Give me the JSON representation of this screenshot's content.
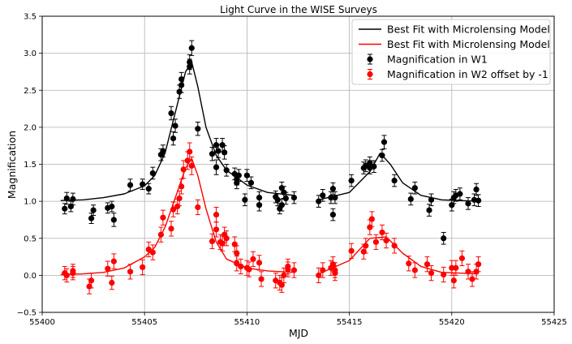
{
  "chart_data": {
    "type": "scatter",
    "title": "Light Curve in the WISE Surveys",
    "xlabel": "MJD",
    "ylabel": "Magnification",
    "xlim": [
      55400,
      55425
    ],
    "ylim": [
      -0.5,
      3.5
    ],
    "xticks": [
      55400,
      55405,
      55410,
      55415,
      55420,
      55425
    ],
    "yticks": [
      -0.5,
      0.0,
      0.5,
      1.0,
      1.5,
      2.0,
      2.5,
      3.0,
      3.5
    ],
    "xtick_labels": [
      "55400",
      "55405",
      "55410",
      "55415",
      "55420",
      "55425"
    ],
    "ytick_labels": [
      "−0.5",
      "0.0",
      "0.5",
      "1.0",
      "1.5",
      "2.0",
      "2.5",
      "3.0",
      "3.5"
    ],
    "grid": true,
    "legend_position": "top-right",
    "colors": {
      "w1": "#000000",
      "w2": "#ff0000",
      "grid": "#b0b0b0"
    },
    "legend": [
      {
        "label": "Best Fit with Microlensing Model",
        "kind": "line",
        "series": "w1_fit"
      },
      {
        "label": "Best Fit with Microlensing Model",
        "kind": "line",
        "series": "w2_fit"
      },
      {
        "label": "Magnification in W1",
        "kind": "errorbar",
        "series": "w1"
      },
      {
        "label": "Magnification in W2 offset by -1",
        "kind": "errorbar",
        "series": "w2"
      }
    ],
    "fit_lines": [
      {
        "id": "w1_fit",
        "color": "#000000",
        "segments": [
          [
            [
              55400.9,
              1.01
            ],
            [
              55402,
              1.02
            ],
            [
              55403,
              1.05
            ],
            [
              55404,
              1.1
            ],
            [
              55405,
              1.21
            ],
            [
              55405.5,
              1.35
            ],
            [
              55406,
              1.65
            ],
            [
              55406.5,
              2.2
            ],
            [
              55407,
              2.75
            ],
            [
              55407.3,
              2.88
            ],
            [
              55407.6,
              2.55
            ],
            [
              55408,
              2.0
            ],
            [
              55408.5,
              1.62
            ],
            [
              55409,
              1.42
            ],
            [
              55410,
              1.22
            ],
            [
              55411,
              1.12
            ],
            [
              55412.3,
              1.08
            ]
          ],
          [
            [
              55413.5,
              1.02
            ],
            [
              55415,
              1.12
            ],
            [
              55416,
              1.4
            ],
            [
              55416.5,
              1.65
            ],
            [
              55417,
              1.5
            ],
            [
              55417.6,
              1.25
            ],
            [
              55418.5,
              1.08
            ],
            [
              55419.5,
              1.02
            ],
            [
              55421.3,
              1.0
            ]
          ]
        ]
      },
      {
        "id": "w2_fit",
        "color": "#ff0000",
        "segments": [
          [
            [
              55400.9,
              0.01
            ],
            [
              55402,
              0.02
            ],
            [
              55403,
              0.04
            ],
            [
              55404,
              0.1
            ],
            [
              55405,
              0.25
            ],
            [
              55405.5,
              0.38
            ],
            [
              55406,
              0.65
            ],
            [
              55406.5,
              1.05
            ],
            [
              55407,
              1.45
            ],
            [
              55407.3,
              1.58
            ],
            [
              55407.6,
              1.35
            ],
            [
              55408,
              0.9
            ],
            [
              55408.5,
              0.45
            ],
            [
              55409,
              0.22
            ],
            [
              55410,
              0.1
            ],
            [
              55411,
              0.06
            ],
            [
              55412.3,
              0.04
            ]
          ],
          [
            [
              55413.5,
              0.02
            ],
            [
              55415,
              0.2
            ],
            [
              55416,
              0.5
            ],
            [
              55416.8,
              0.52
            ],
            [
              55417.6,
              0.3
            ],
            [
              55418.5,
              0.12
            ],
            [
              55419.5,
              0.04
            ],
            [
              55421.3,
              0.02
            ]
          ]
        ]
      }
    ],
    "series": [
      {
        "name": "Magnification in W1",
        "id": "w1",
        "color": "#000000",
        "points": [
          [
            55401.1,
            0.9,
            0.07
          ],
          [
            55401.2,
            1.04,
            0.08
          ],
          [
            55401.4,
            0.93,
            0.07
          ],
          [
            55401.5,
            1.03,
            0.08
          ],
          [
            55402.4,
            0.77,
            0.07
          ],
          [
            55402.5,
            0.88,
            0.07
          ],
          [
            55403.2,
            0.91,
            0.07
          ],
          [
            55403.4,
            0.93,
            0.07
          ],
          [
            55403.5,
            0.75,
            0.09
          ],
          [
            55404.3,
            1.22,
            0.08
          ],
          [
            55404.9,
            1.23,
            0.07
          ],
          [
            55405.2,
            1.17,
            0.07
          ],
          [
            55405.4,
            1.38,
            0.08
          ],
          [
            55405.8,
            1.63,
            0.08
          ],
          [
            55405.9,
            1.68,
            0.08
          ],
          [
            55406.3,
            2.19,
            0.09
          ],
          [
            55406.4,
            1.85,
            0.09
          ],
          [
            55406.5,
            2.02,
            0.09
          ],
          [
            55406.7,
            2.48,
            0.09
          ],
          [
            55406.8,
            2.57,
            0.1
          ],
          [
            55406.8,
            2.65,
            0.09
          ],
          [
            55407.2,
            2.82,
            0.1
          ],
          [
            55407.2,
            2.88,
            0.1
          ],
          [
            55407.3,
            3.07,
            0.1
          ],
          [
            55407.6,
            1.98,
            0.09
          ],
          [
            55408.3,
            1.64,
            0.09
          ],
          [
            55408.5,
            1.76,
            0.09
          ],
          [
            55408.5,
            1.46,
            0.1
          ],
          [
            55408.6,
            1.68,
            0.09
          ],
          [
            55408.8,
            1.76,
            0.09
          ],
          [
            55408.9,
            1.66,
            0.09
          ],
          [
            55409.0,
            1.42,
            0.08
          ],
          [
            55409.4,
            1.37,
            0.08
          ],
          [
            55409.5,
            1.3,
            0.08
          ],
          [
            55409.5,
            1.25,
            0.08
          ],
          [
            55409.6,
            1.35,
            0.08
          ],
          [
            55409.9,
            1.02,
            0.08
          ],
          [
            55410.0,
            1.35,
            0.08
          ],
          [
            55410.2,
            1.25,
            0.08
          ],
          [
            55410.6,
            1.05,
            0.08
          ],
          [
            55410.6,
            0.95,
            0.08
          ],
          [
            55411.4,
            1.06,
            0.08
          ],
          [
            55411.5,
            1.02,
            0.08
          ],
          [
            55411.6,
            0.9,
            0.07
          ],
          [
            55411.7,
            0.95,
            0.08
          ],
          [
            55411.7,
            1.18,
            0.08
          ],
          [
            55411.8,
            1.12,
            0.08
          ],
          [
            55411.9,
            1.04,
            0.08
          ],
          [
            55412.3,
            1.05,
            0.08
          ],
          [
            55413.5,
            1.0,
            0.08
          ],
          [
            55413.7,
            1.08,
            0.08
          ],
          [
            55414.1,
            1.05,
            0.08
          ],
          [
            55414.2,
            0.82,
            0.08
          ],
          [
            55414.2,
            1.17,
            0.08
          ],
          [
            55414.3,
            1.05,
            0.08
          ],
          [
            55415.1,
            1.28,
            0.08
          ],
          [
            55415.7,
            1.45,
            0.08
          ],
          [
            55415.8,
            1.48,
            0.08
          ],
          [
            55416.0,
            1.45,
            0.08
          ],
          [
            55416.0,
            1.52,
            0.08
          ],
          [
            55416.2,
            1.47,
            0.08
          ],
          [
            55416.6,
            1.62,
            0.08
          ],
          [
            55416.7,
            1.8,
            0.09
          ],
          [
            55417.2,
            1.28,
            0.08
          ],
          [
            55418.0,
            1.03,
            0.08
          ],
          [
            55418.2,
            1.18,
            0.08
          ],
          [
            55418.9,
            0.88,
            0.08
          ],
          [
            55419.0,
            1.02,
            0.08
          ],
          [
            55419.6,
            0.5,
            0.08
          ],
          [
            55420.0,
            0.95,
            0.08
          ],
          [
            55420.1,
            1.05,
            0.08
          ],
          [
            55420.2,
            1.08,
            0.08
          ],
          [
            55420.4,
            1.1,
            0.08
          ],
          [
            55420.8,
            0.97,
            0.08
          ],
          [
            55421.1,
            1.02,
            0.08
          ],
          [
            55421.2,
            1.16,
            0.08
          ],
          [
            55421.3,
            1.01,
            0.08
          ]
        ]
      },
      {
        "name": "Magnification in W2 offset by -1",
        "id": "w2",
        "color": "#ff0000",
        "points": [
          [
            55401.1,
            0.03,
            0.09
          ],
          [
            55401.2,
            0.0,
            0.09
          ],
          [
            55401.5,
            0.06,
            0.09
          ],
          [
            55401.5,
            0.03,
            0.09
          ],
          [
            55402.3,
            -0.15,
            0.1
          ],
          [
            55402.4,
            -0.07,
            0.1
          ],
          [
            55403.2,
            0.09,
            0.1
          ],
          [
            55403.4,
            -0.1,
            0.09
          ],
          [
            55403.5,
            0.19,
            0.1
          ],
          [
            55404.3,
            0.05,
            0.1
          ],
          [
            55404.9,
            0.11,
            0.1
          ],
          [
            55405.2,
            0.35,
            0.1
          ],
          [
            55405.4,
            0.31,
            0.1
          ],
          [
            55405.8,
            0.55,
            0.1
          ],
          [
            55405.9,
            0.78,
            0.1
          ],
          [
            55406.3,
            0.63,
            0.1
          ],
          [
            55406.4,
            0.89,
            0.1
          ],
          [
            55406.6,
            0.93,
            0.1
          ],
          [
            55406.7,
            1.04,
            0.1
          ],
          [
            55406.8,
            1.2,
            0.1
          ],
          [
            55406.9,
            1.43,
            0.12
          ],
          [
            55407.1,
            1.55,
            0.12
          ],
          [
            55407.2,
            1.67,
            0.12
          ],
          [
            55407.3,
            1.48,
            0.12
          ],
          [
            55407.6,
            0.92,
            0.1
          ],
          [
            55408.3,
            0.46,
            0.1
          ],
          [
            55408.5,
            0.82,
            0.1
          ],
          [
            55408.5,
            0.62,
            0.1
          ],
          [
            55408.7,
            0.45,
            0.1
          ],
          [
            55408.8,
            0.43,
            0.1
          ],
          [
            55408.9,
            0.55,
            0.1
          ],
          [
            55409.0,
            0.5,
            0.1
          ],
          [
            55409.4,
            0.42,
            0.1
          ],
          [
            55409.5,
            0.3,
            0.1
          ],
          [
            55409.5,
            0.16,
            0.1
          ],
          [
            55409.7,
            0.12,
            0.1
          ],
          [
            55410.0,
            0.1,
            0.1
          ],
          [
            55410.1,
            0.08,
            0.1
          ],
          [
            55410.3,
            0.22,
            0.1
          ],
          [
            55410.6,
            0.17,
            0.1
          ],
          [
            55410.7,
            -0.05,
            0.1
          ],
          [
            55411.4,
            -0.07,
            0.1
          ],
          [
            55411.6,
            -0.1,
            0.1
          ],
          [
            55411.7,
            -0.13,
            0.1
          ],
          [
            55411.8,
            0.0,
            0.1
          ],
          [
            55412.0,
            0.08,
            0.1
          ],
          [
            55412.0,
            0.12,
            0.1
          ],
          [
            55412.3,
            0.07,
            0.1
          ],
          [
            55413.5,
            0.0,
            0.1
          ],
          [
            55413.7,
            0.07,
            0.1
          ],
          [
            55414.1,
            0.1,
            0.1
          ],
          [
            55414.2,
            0.15,
            0.1
          ],
          [
            55414.3,
            0.03,
            0.1
          ],
          [
            55414.3,
            0.07,
            0.1
          ],
          [
            55415.1,
            0.33,
            0.1
          ],
          [
            55415.7,
            0.32,
            0.1
          ],
          [
            55415.8,
            0.4,
            0.1
          ],
          [
            55416.0,
            0.65,
            0.1
          ],
          [
            55416.1,
            0.76,
            0.1
          ],
          [
            55416.3,
            0.45,
            0.1
          ],
          [
            55416.6,
            0.58,
            0.1
          ],
          [
            55416.8,
            0.47,
            0.1
          ],
          [
            55417.2,
            0.4,
            0.1
          ],
          [
            55417.9,
            0.16,
            0.1
          ],
          [
            55418.2,
            0.07,
            0.1
          ],
          [
            55418.8,
            0.15,
            0.1
          ],
          [
            55419.0,
            0.03,
            0.1
          ],
          [
            55419.6,
            0.01,
            0.1
          ],
          [
            55420.0,
            0.1,
            0.1
          ],
          [
            55420.1,
            -0.07,
            0.1
          ],
          [
            55420.2,
            0.1,
            0.1
          ],
          [
            55420.5,
            0.23,
            0.1
          ],
          [
            55420.8,
            0.05,
            0.1
          ],
          [
            55421.0,
            -0.05,
            0.1
          ],
          [
            55421.2,
            0.05,
            0.1
          ],
          [
            55421.3,
            0.15,
            0.1
          ]
        ]
      }
    ]
  }
}
